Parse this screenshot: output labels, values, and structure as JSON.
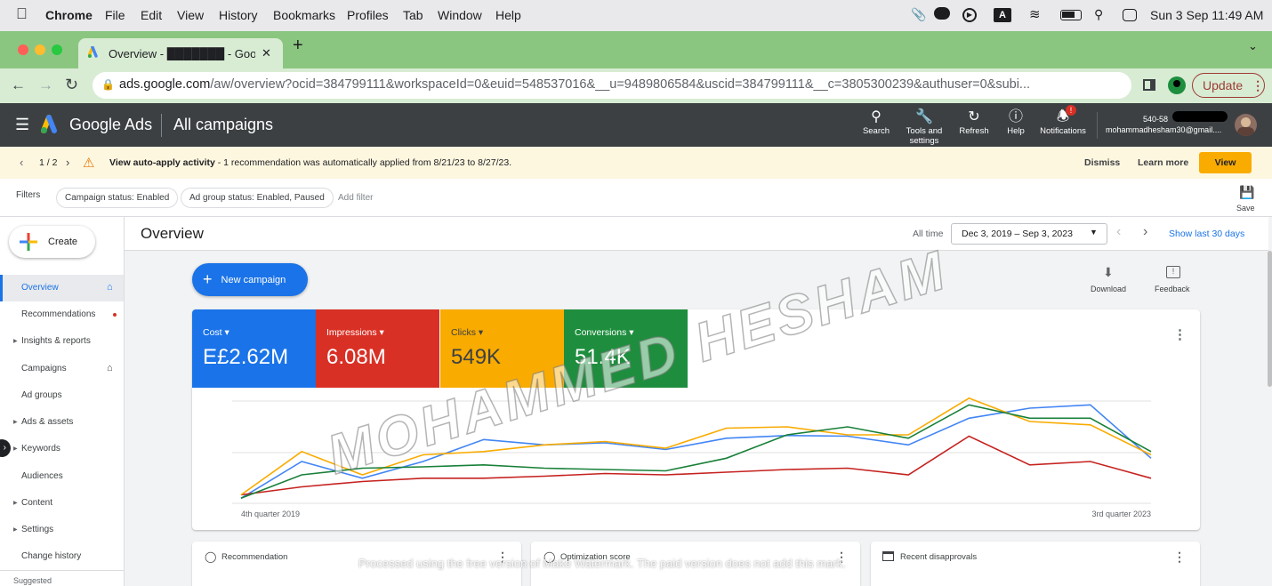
{
  "mac": {
    "app": "Chrome",
    "menu": [
      "File",
      "Edit",
      "View",
      "History",
      "Bookmarks",
      "Profiles",
      "Tab",
      "Window",
      "Help"
    ],
    "datetime": "Sun 3 Sep  11:49 AM",
    "a_badge": "A"
  },
  "tab": {
    "title": "Overview - ███████ - Google A",
    "close": "✕",
    "new": "+"
  },
  "url": {
    "domain": "ads.google.com",
    "path": "/aw/overview?ocid=384799111&workspaceId=0&euid=548537016&__u=9489806584&uscid=384799111&__c=3805300239&authuser=0&subi...",
    "update_label": "Update"
  },
  "ads_header": {
    "brand": "Google Ads",
    "section": "All campaigns",
    "search": "Search",
    "tools": "Tools and settings",
    "refresh": "Refresh",
    "help": "Help",
    "notifications": "Notifications",
    "notif_badge": "!",
    "account_id": "540-58",
    "account_email": "mohammadhesham30@gmail...."
  },
  "banner": {
    "pager": "1 / 2",
    "title": "View auto-apply activity",
    "text": " - 1 recommendation was automatically applied from 8/21/23 to 8/27/23.",
    "dismiss": "Dismiss",
    "learn": "Learn more",
    "view": "View"
  },
  "filters": {
    "label": "Filters",
    "chips": [
      "Campaign status: Enabled",
      "Ad group status: Enabled, Paused"
    ],
    "add": "Add filter",
    "save": "Save"
  },
  "sidebar": {
    "create": "Create",
    "items": [
      {
        "label": "Overview"
      },
      {
        "label": "Recommendations"
      },
      {
        "label": "Insights & reports"
      },
      {
        "label": "Campaigns"
      },
      {
        "label": "Ad groups"
      },
      {
        "label": "Ads & assets"
      },
      {
        "label": "Keywords"
      },
      {
        "label": "Audiences"
      },
      {
        "label": "Content"
      },
      {
        "label": "Settings"
      },
      {
        "label": "Change history"
      }
    ],
    "suggested": "Suggested"
  },
  "overview": {
    "title": "Overview",
    "range_label": "All time",
    "range": "Dec 3, 2019 – Sep 3, 2023",
    "show_last": "Show last 30 days",
    "new_campaign": "New campaign",
    "download": "Download",
    "feedback": "Feedback"
  },
  "metrics": [
    {
      "label": "Cost",
      "value": "E£2.62M",
      "color": "#1a73e8"
    },
    {
      "label": "Impressions",
      "value": "6.08M",
      "color": "#d93025"
    },
    {
      "label": "Clicks",
      "value": "549K",
      "color": "#f9ab00"
    },
    {
      "label": "Conversions",
      "value": "51.4K",
      "color": "#1e8e3e"
    }
  ],
  "chart_data": {
    "type": "line",
    "x_start_label": "4th quarter 2019",
    "x_end_label": "3rd quarter 2023",
    "points": 16,
    "series": [
      {
        "name": "Cost",
        "color": "#4285f4",
        "values": [
          0.05,
          0.6,
          0.35,
          0.6,
          0.93,
          0.85,
          0.88,
          0.78,
          0.95,
          0.99,
          0.98,
          0.85,
          1.25,
          1.4,
          1.45,
          0.65
        ]
      },
      {
        "name": "Impressions",
        "color": "#c5221f",
        "values": [
          0.1,
          0.22,
          0.3,
          0.35,
          0.35,
          0.38,
          0.42,
          0.4,
          0.44,
          0.48,
          0.5,
          0.4,
          0.98,
          0.55,
          0.6,
          0.35
        ]
      },
      {
        "name": "Clicks",
        "color": "#f9ab00",
        "values": [
          0.1,
          0.75,
          0.4,
          0.7,
          0.75,
          0.85,
          0.9,
          0.8,
          1.1,
          1.12,
          1.0,
          1.0,
          1.55,
          1.2,
          1.15,
          0.7
        ]
      },
      {
        "name": "Conversions",
        "color": "#188038",
        "values": [
          0.05,
          0.4,
          0.5,
          0.52,
          0.55,
          0.5,
          0.48,
          0.46,
          0.65,
          1.0,
          1.12,
          0.95,
          1.45,
          1.25,
          1.25,
          0.75
        ]
      }
    ]
  },
  "bottom_cards": {
    "recommendation": "Recommendation",
    "optimization": "Optimization score",
    "disapprovals": "Recent disapprovals"
  },
  "watermark": {
    "name": "MOHAMMED HESHAM",
    "notice": "Processed using the free version of Make Watermark. The paid version does not add this mark."
  }
}
